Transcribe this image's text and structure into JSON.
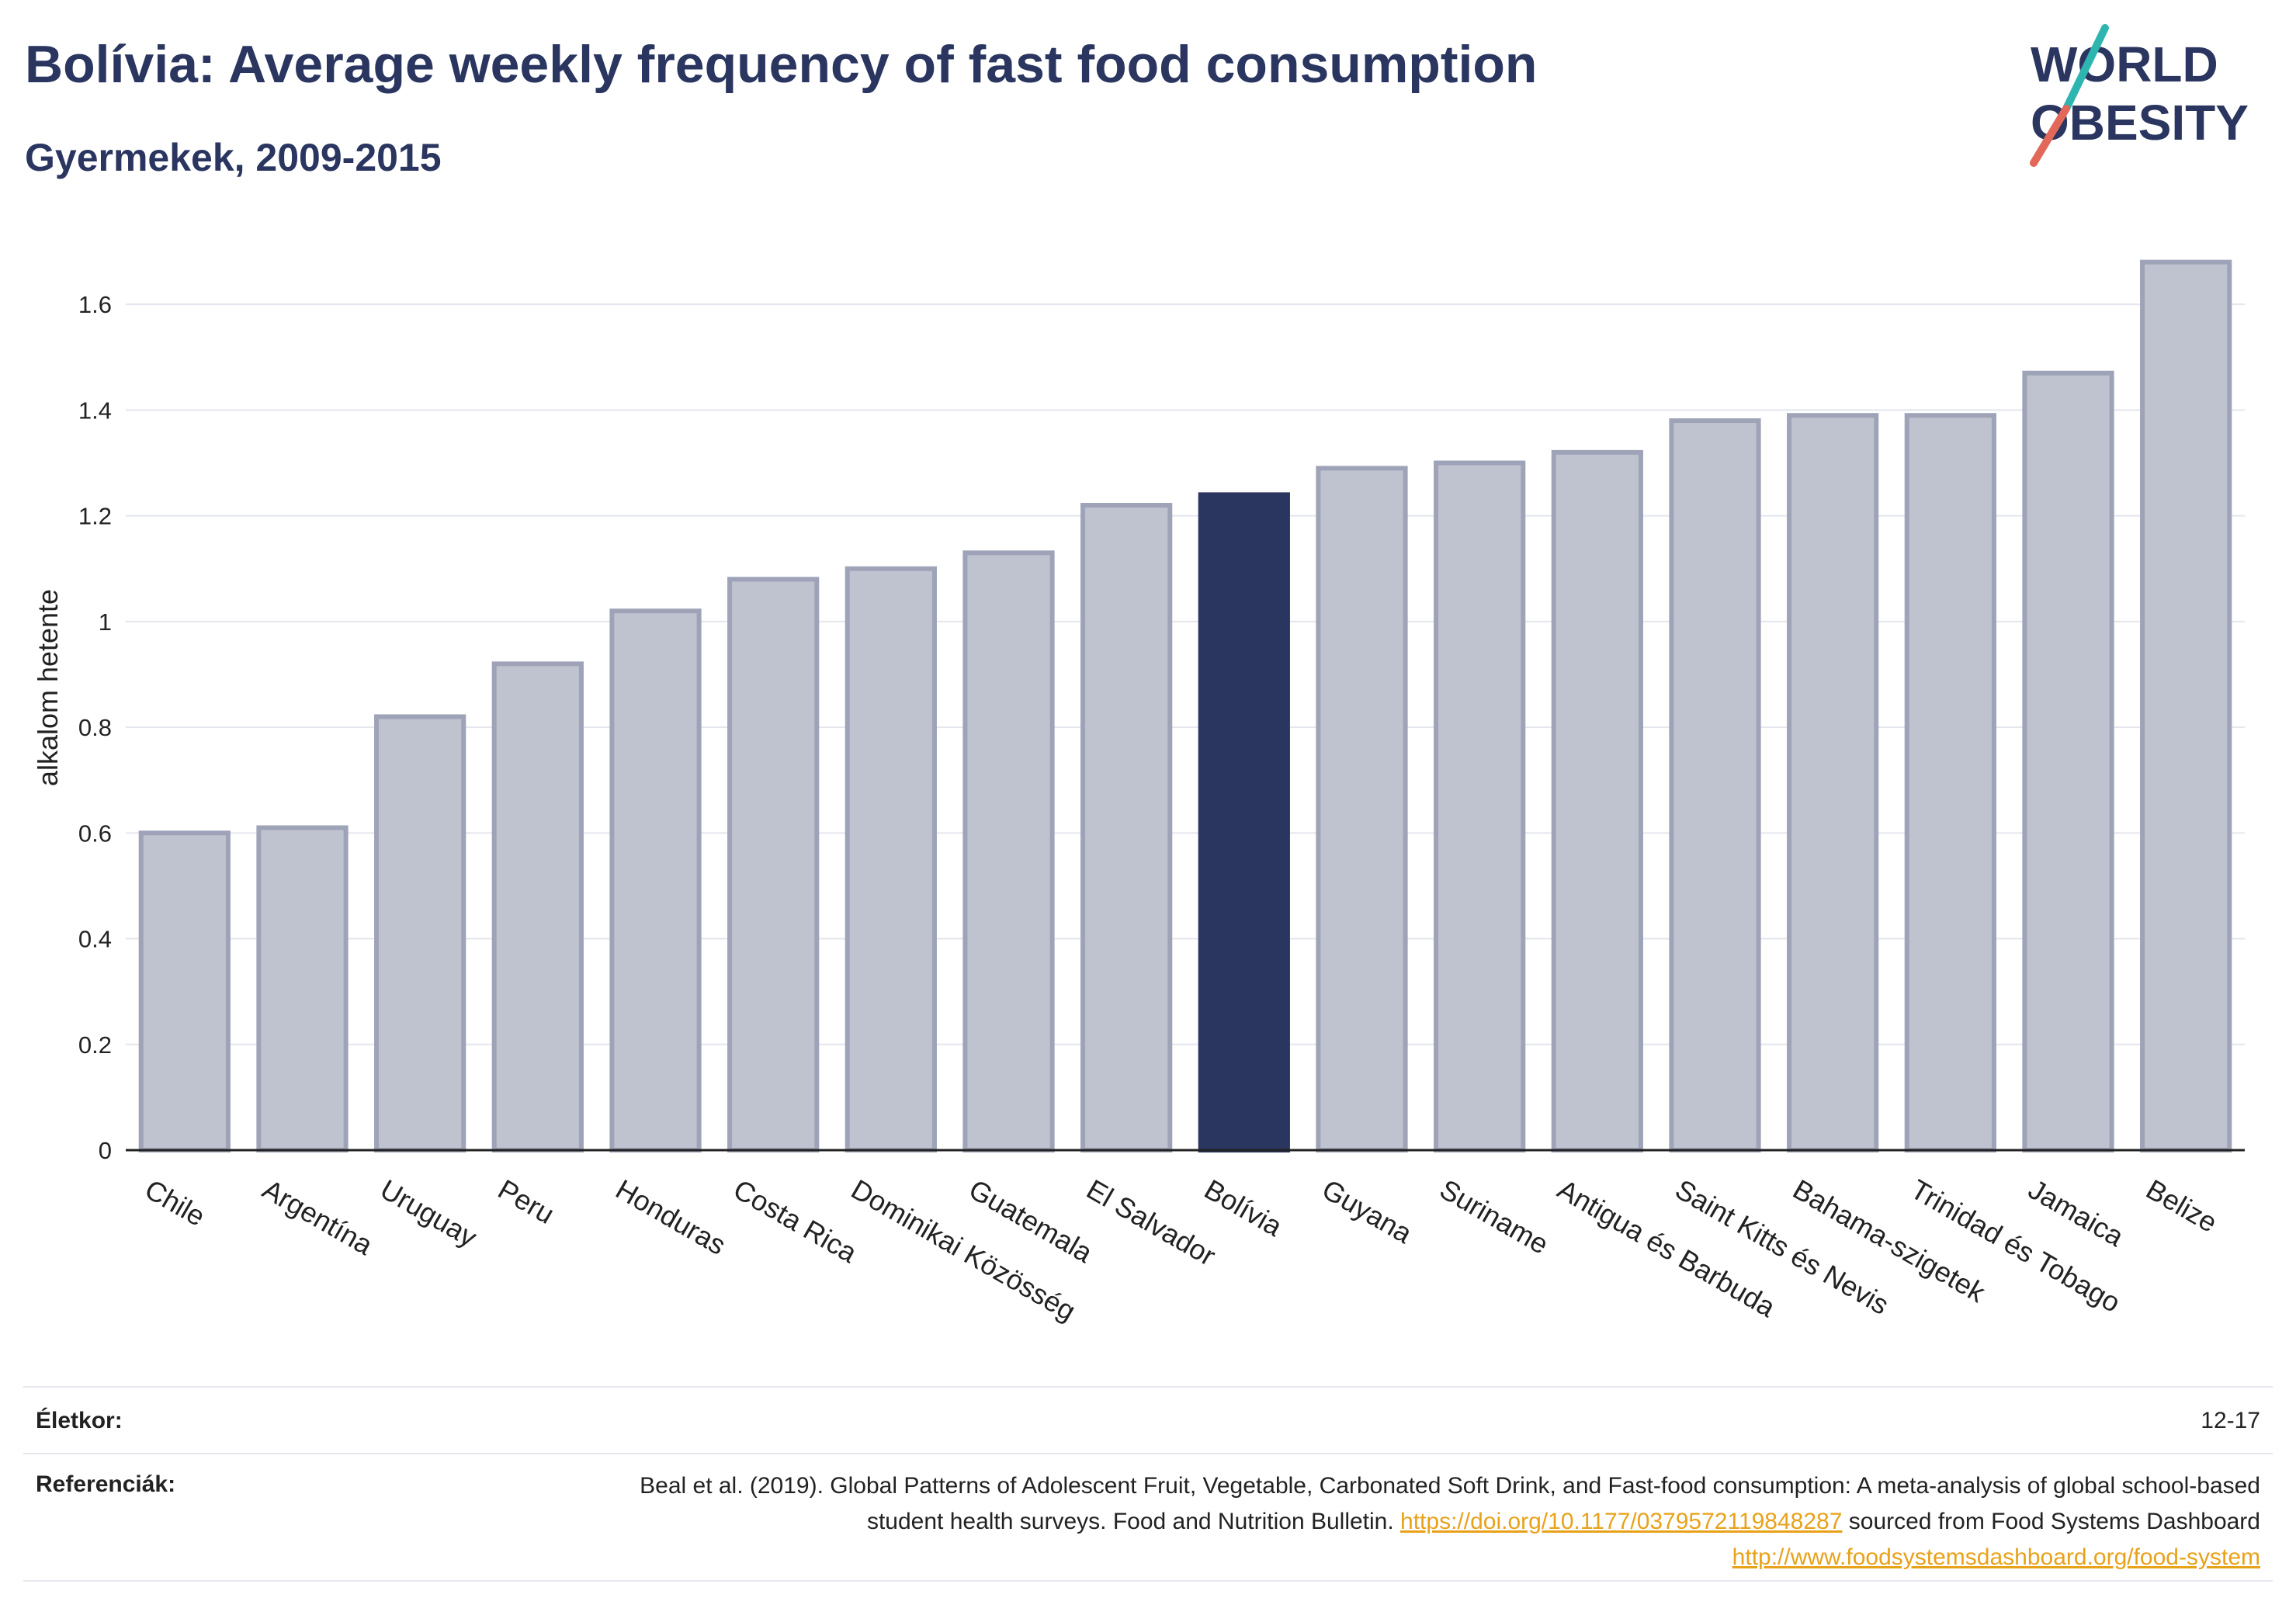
{
  "header": {
    "title": "Bolívia: Average weekly frequency of fast food consumption",
    "subtitle": "Gyermekek, 2009-2015"
  },
  "logo": {
    "line1": "WORLD",
    "line2": "OBESITY",
    "text_color": "#2a3560",
    "accent_teal": "#2fb5b0",
    "accent_red": "#e2685a"
  },
  "colors": {
    "bar": "#bfc2cf",
    "bar_border": "#9ea3b8",
    "highlight": "#2a3560",
    "link": "#e8a21a"
  },
  "chart_data": {
    "type": "bar",
    "categories": [
      "Chile",
      "Argentína",
      "Uruguay",
      "Peru",
      "Honduras",
      "Costa Rica",
      "Dominikai Közösség",
      "Guatemala",
      "El Salvador",
      "Bolívia",
      "Guyana",
      "Suriname",
      "Antigua és Barbuda",
      "Saint Kitts és Nevis",
      "Bahama-szigetek",
      "Trinidad és Tobago",
      "Jamaica",
      "Belize"
    ],
    "values": [
      0.6,
      0.61,
      0.82,
      0.92,
      1.02,
      1.08,
      1.1,
      1.13,
      1.22,
      1.24,
      1.29,
      1.3,
      1.32,
      1.38,
      1.39,
      1.39,
      1.47,
      1.68
    ],
    "highlight": "Bolívia",
    "ylabel": "alkalom hetente",
    "xlabel": "",
    "ylim": [
      0,
      1.75
    ],
    "yticks": [
      0,
      0.2,
      0.4,
      0.6,
      0.8,
      1,
      1.2,
      1.4,
      1.6
    ],
    "ytick_labels": [
      "0",
      "0.2",
      "0.4",
      "0.6",
      "0.8",
      "1",
      "1.2",
      "1.4",
      "1.6"
    ],
    "grid": true
  },
  "footer": {
    "age_label": "Életkor:",
    "age_value": "12-17",
    "ref_label": "Referenciák:",
    "ref_text_1": "Beal et al. (2019). Global Patterns of Adolescent Fruit, Vegetable, Carbonated Soft Drink, and Fast-food consumption: A meta-analysis of global school-based student health surveys. Food and Nutrition Bulletin. ",
    "ref_link_1": "https://doi.org/10.1177/0379572119848287",
    "ref_text_2": " sourced from Food Systems Dashboard ",
    "ref_link_2": "http://www.foodsystemsdashboard.org/food-system"
  }
}
